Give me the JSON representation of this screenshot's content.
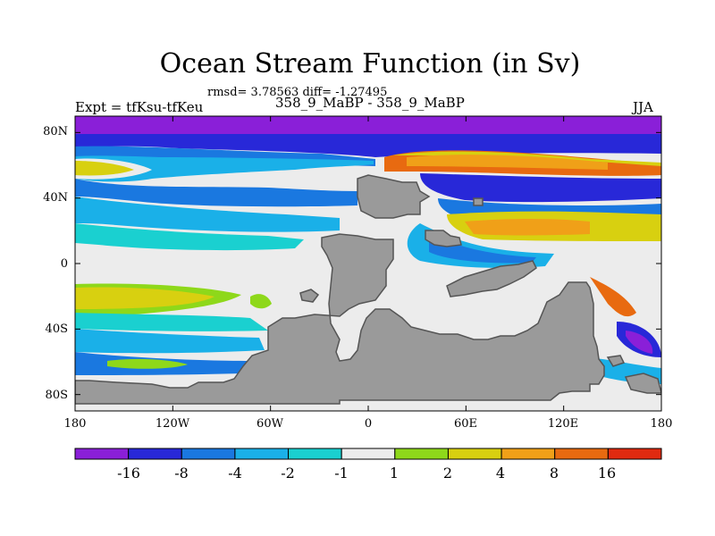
{
  "title": "Ocean Stream Function (in Sv)",
  "stats_line": "rmsd= 3.78563 diff= -1.27495",
  "left_label": "Expt = tfKsu-tfKeu",
  "center_label": "358_9_MaBP - 358_9_MaBP",
  "right_label": "JJA",
  "lat_ticks": [
    "80N",
    "40N",
    "0",
    "40S",
    "80S"
  ],
  "lon_ticks": [
    "180",
    "120W",
    "60W",
    "0",
    "60E",
    "120E",
    "180"
  ],
  "colorbar": {
    "labels": [
      "-16",
      "-8",
      "-4",
      "-2",
      "-1",
      "1",
      "2",
      "4",
      "8",
      "16"
    ],
    "colors": [
      "#8a1fd8",
      "#2828d8",
      "#1a78e0",
      "#1ab0e8",
      "#1ad0d0",
      "#ececec",
      "#8ed81a",
      "#d8d010",
      "#f0a018",
      "#e86a10",
      "#e02a10"
    ]
  },
  "land_color": "#9a9a9a"
}
